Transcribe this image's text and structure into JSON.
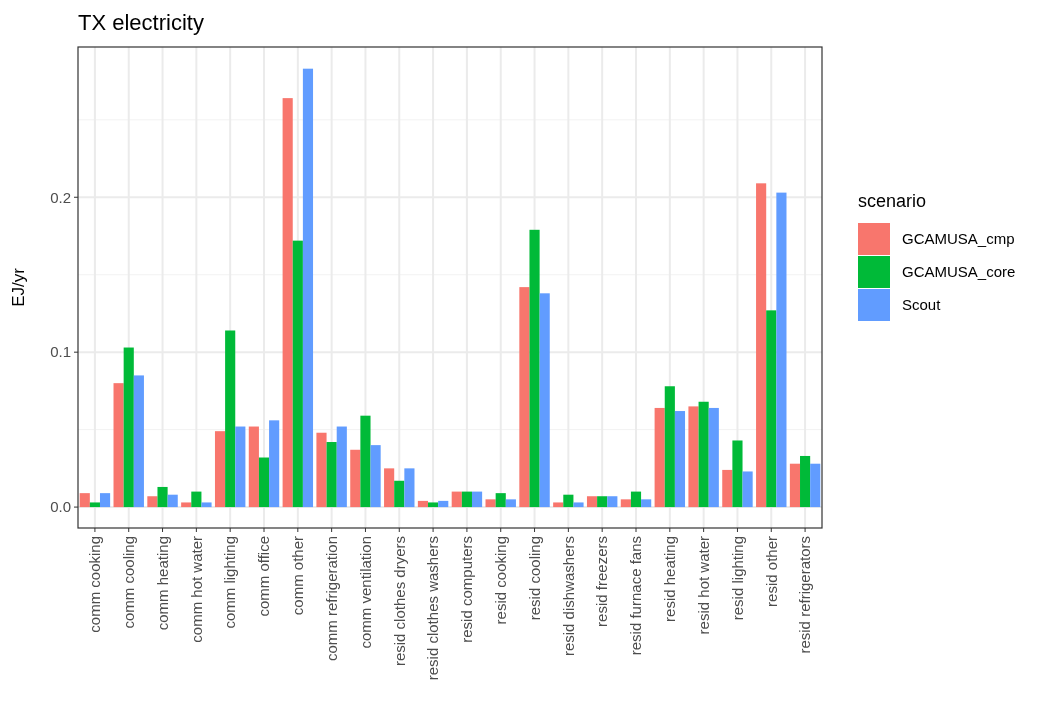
{
  "chart_data": {
    "type": "bar",
    "title": "TX electricity",
    "ylabel": "EJ/yr",
    "legend_title": "scenario",
    "categories": [
      "comm cooking",
      "comm cooling",
      "comm heating",
      "comm hot water",
      "comm lighting",
      "comm office",
      "comm other",
      "comm refrigeration",
      "comm ventilation",
      "resid clothes dryers",
      "resid clothes washers",
      "resid computers",
      "resid cooking",
      "resid cooling",
      "resid dishwashers",
      "resid freezers",
      "resid furnace fans",
      "resid heating",
      "resid hot water",
      "resid lighting",
      "resid other",
      "resid refrigerators"
    ],
    "series": [
      {
        "name": "GCAMUSA_cmp",
        "color": "#f8766d",
        "values": [
          0.009,
          0.08,
          0.007,
          0.003,
          0.049,
          0.052,
          0.264,
          0.048,
          0.037,
          0.025,
          0.004,
          0.01,
          0.005,
          0.142,
          0.003,
          0.007,
          0.005,
          0.064,
          0.065,
          0.024,
          0.209,
          0.028
        ]
      },
      {
        "name": "GCAMUSA_core",
        "color": "#00ba38",
        "values": [
          0.003,
          0.103,
          0.013,
          0.01,
          0.114,
          0.032,
          0.172,
          0.042,
          0.059,
          0.017,
          0.003,
          0.01,
          0.009,
          0.179,
          0.008,
          0.007,
          0.01,
          0.078,
          0.068,
          0.043,
          0.127,
          0.033
        ]
      },
      {
        "name": "Scout",
        "color": "#619cff",
        "values": [
          0.009,
          0.085,
          0.008,
          0.003,
          0.052,
          0.056,
          0.283,
          0.052,
          0.04,
          0.025,
          0.004,
          0.01,
          0.005,
          0.138,
          0.003,
          0.007,
          0.005,
          0.062,
          0.064,
          0.023,
          0.203,
          0.028
        ]
      }
    ],
    "ylim": [
      -0.0135,
      0.297
    ],
    "yticks": [
      {
        "value": 0,
        "label": "0.0"
      },
      {
        "value": 0.1,
        "label": "0.1"
      },
      {
        "value": 0.2,
        "label": "0.2"
      }
    ],
    "grid": true,
    "legend": "right"
  }
}
